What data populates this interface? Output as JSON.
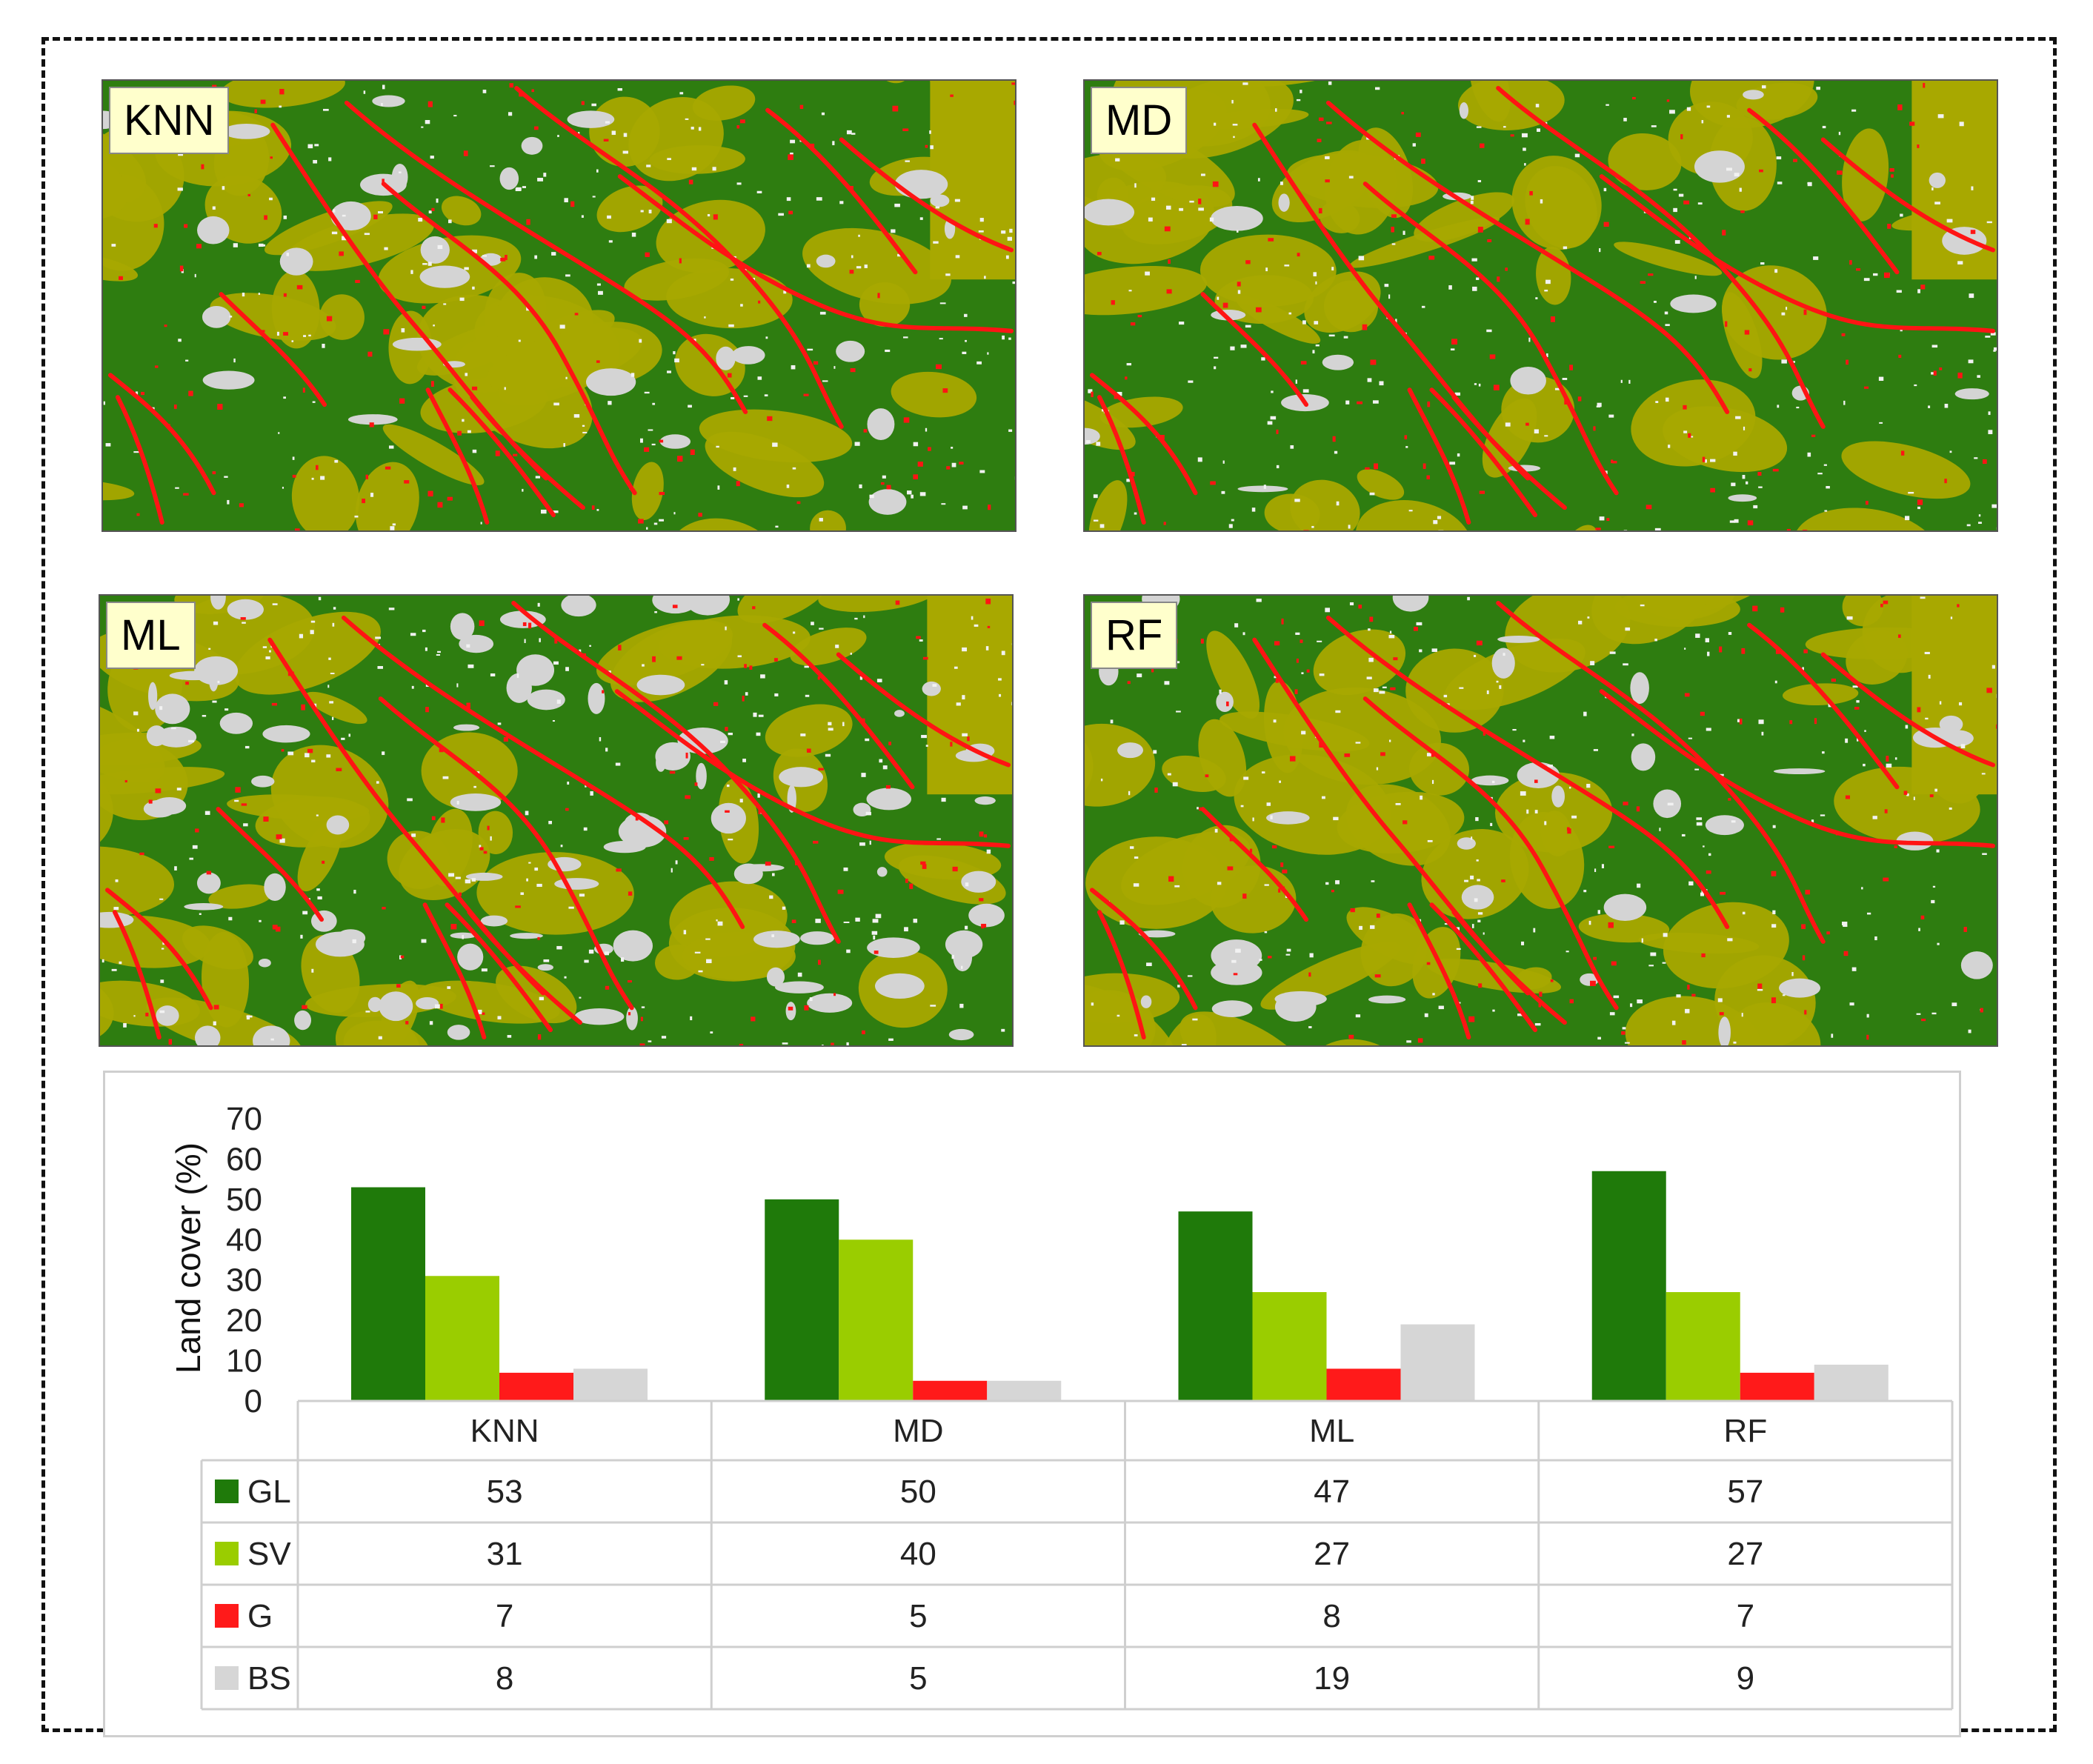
{
  "maps": [
    {
      "label": "KNN"
    },
    {
      "label": "MD"
    },
    {
      "label": "ML"
    },
    {
      "label": "RF"
    }
  ],
  "colors": {
    "GL": "#1f7a0a",
    "SV": "#9acd00",
    "G": "#ff1a1a",
    "BS": "#d6d6d6",
    "map_gl": "#2e7d10",
    "map_sv": "#a8a800",
    "map_g": "#ff1414",
    "map_bs": "#d4d4d4"
  },
  "chart_data": {
    "type": "bar",
    "categories": [
      "KNN",
      "MD",
      "ML",
      "RF"
    ],
    "series": [
      {
        "name": "GL",
        "values": [
          53,
          50,
          47,
          57
        ]
      },
      {
        "name": "SV",
        "values": [
          31,
          40,
          27,
          27
        ]
      },
      {
        "name": "G",
        "values": [
          7,
          5,
          8,
          7
        ]
      },
      {
        "name": "BS",
        "values": [
          8,
          5,
          19,
          9
        ]
      }
    ],
    "ylabel": "Land cover (%)",
    "ylim": [
      0,
      70
    ],
    "yticks": [
      0,
      10,
      20,
      30,
      40,
      50,
      60,
      70
    ],
    "table": {
      "columns": [
        "KNN",
        "MD",
        "ML",
        "RF"
      ],
      "rows": [
        {
          "name": "GL",
          "values": [
            "53",
            "50",
            "47",
            "57"
          ]
        },
        {
          "name": "SV",
          "values": [
            "31",
            "40",
            "27",
            "27"
          ]
        },
        {
          "name": "G",
          "values": [
            "7",
            "5",
            "8",
            "7"
          ]
        },
        {
          "name": "BS",
          "values": [
            "8",
            "5",
            "19",
            "9"
          ]
        }
      ]
    },
    "grid": false,
    "legend": "data-table"
  }
}
